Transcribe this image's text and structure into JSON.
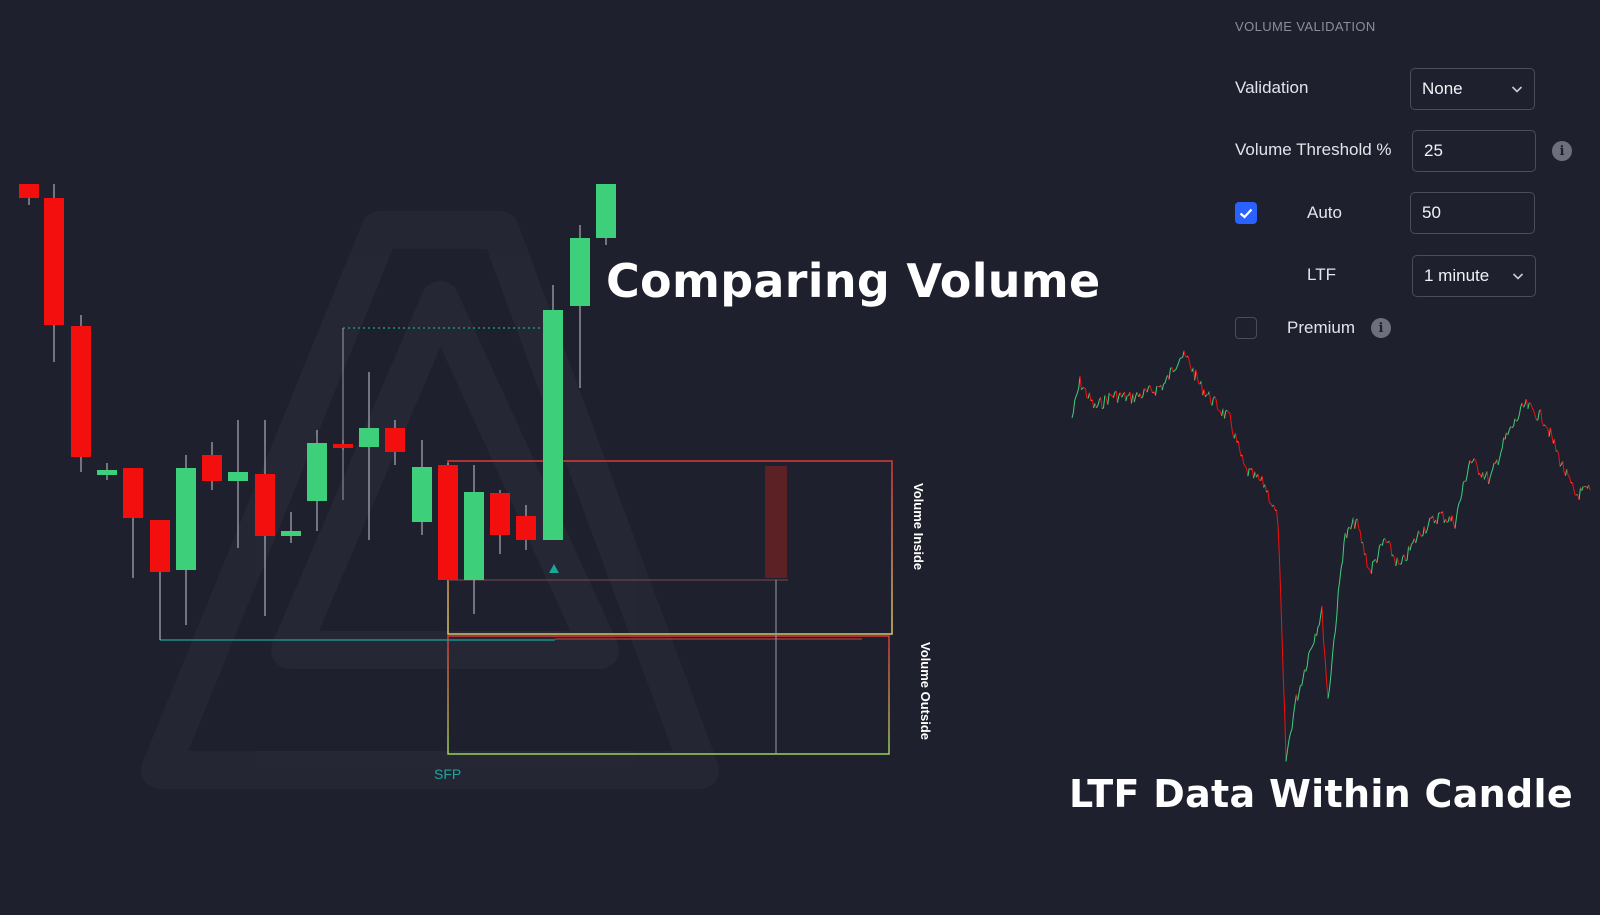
{
  "headlines": {
    "left": "Comparing Volume",
    "right": "LTF Data Within Candle"
  },
  "chart_labels": {
    "volume_inside": "Volume Inside",
    "volume_outside": "Volume Outside",
    "sfp": "SFP"
  },
  "colors": {
    "background": "#1f202d",
    "bull": "#3ecf7b",
    "bear": "#f40f0f",
    "accent": "#2962ff",
    "sfp_teal": "#1aa69a"
  },
  "settings": {
    "section_title": "VOLUME VALIDATION",
    "validation": {
      "label": "Validation",
      "value": "None",
      "icon": "chevron-down-icon"
    },
    "threshold": {
      "label": "Volume Threshold %",
      "value": "25",
      "icon": "info-icon"
    },
    "auto": {
      "label": "Auto",
      "checked": true,
      "value": "50",
      "icon": "check-icon"
    },
    "ltf": {
      "label": "LTF",
      "value": "1 minute",
      "icon": "chevron-down-icon"
    },
    "premium": {
      "label": "Premium",
      "checked": false,
      "icon": "info-icon"
    }
  }
}
